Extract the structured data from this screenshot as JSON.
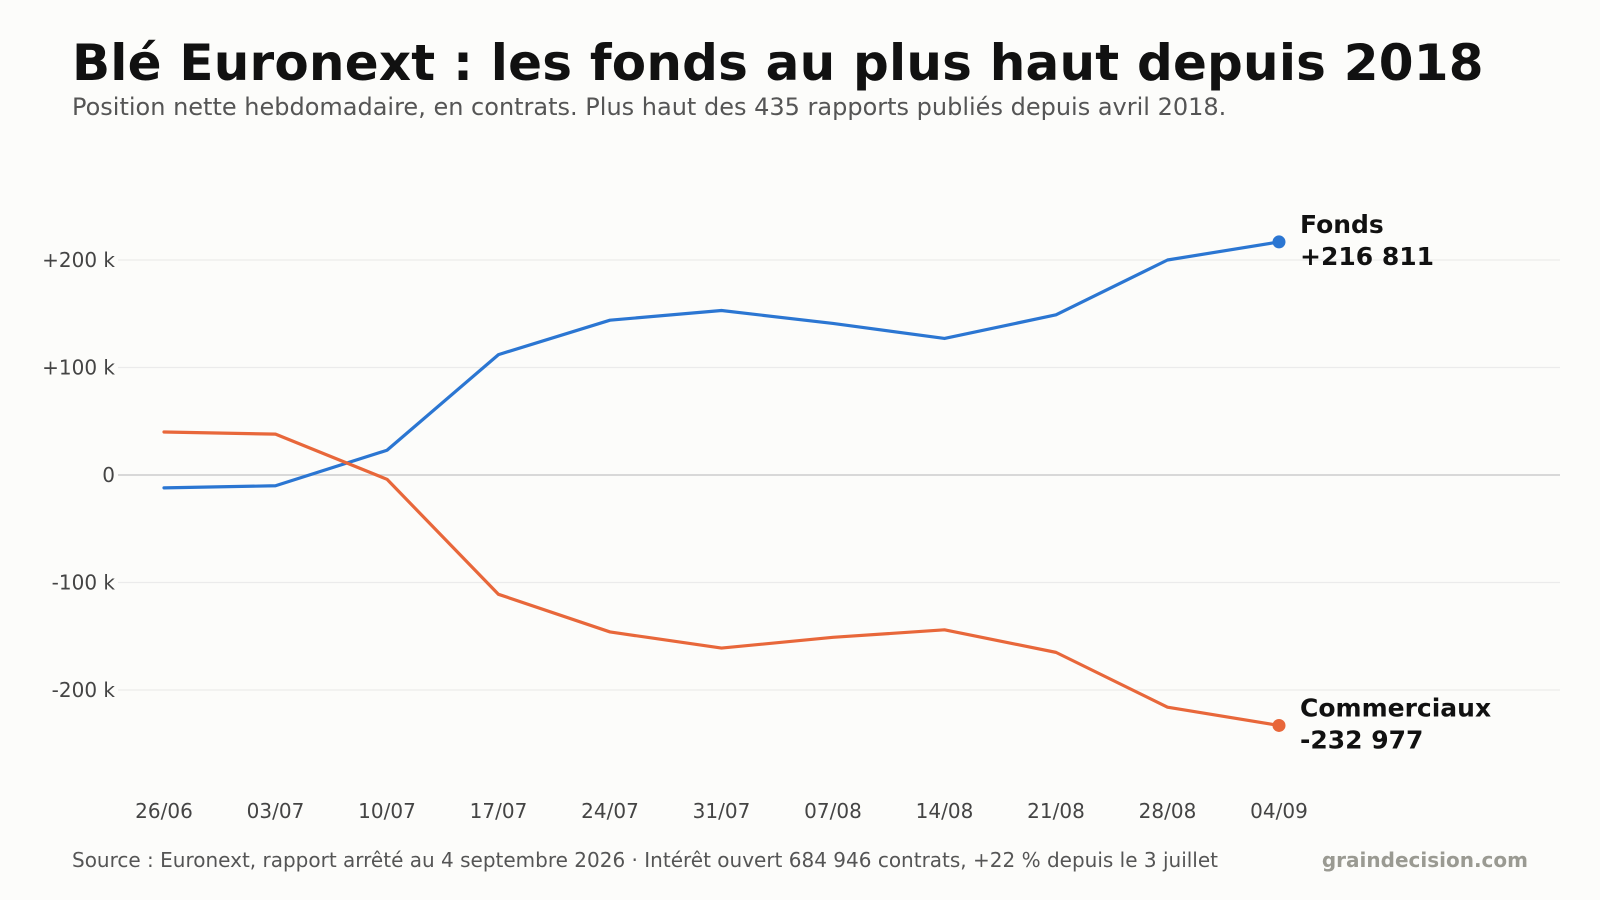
{
  "header": {
    "title": "Blé Euronext : les fonds au plus haut depuis 2018",
    "subtitle": "Position nette hebdomadaire, en contrats. Plus haut des 435 rapports publiés depuis avril 2018."
  },
  "footer": {
    "source": "Source : Euronext, rapport arrêté au 4 septembre 2026  ·  Intérêt ouvert 684 946 contrats, +22 % depuis le 3 juillet",
    "brand": "graindecision.com"
  },
  "colors": {
    "fonds": "#2b76d2",
    "commerciaux": "#e8673a",
    "zero_line": "#cccccc",
    "grid": "#ebebeb",
    "tick_text": "#444444",
    "label_text": "#111111"
  },
  "chart_data": {
    "type": "line",
    "title": "Blé Euronext : les fonds au plus haut depuis 2018",
    "subtitle": "Position nette hebdomadaire, en contrats. Plus haut des 435 rapports publiés depuis avril 2018.",
    "xlabel": "",
    "ylabel": "",
    "ylim": [
      -290000,
      290000
    ],
    "grid": true,
    "legend": "end-of-line labels",
    "x": [
      "26/06",
      "03/07",
      "10/07",
      "17/07",
      "24/07",
      "31/07",
      "07/08",
      "14/08",
      "21/08",
      "28/08",
      "04/09"
    ],
    "yticks": [
      {
        "value": 200000,
        "label": "+200 k"
      },
      {
        "value": 100000,
        "label": "+100 k"
      },
      {
        "value": 0,
        "label": "0"
      },
      {
        "value": -100000,
        "label": "-100 k"
      },
      {
        "value": -200000,
        "label": "-200 k"
      }
    ],
    "series": [
      {
        "name": "Fonds",
        "end_label": "+216 811",
        "values": [
          -12000,
          -10000,
          23000,
          112000,
          144000,
          153000,
          141000,
          127000,
          149000,
          200000,
          216811
        ]
      },
      {
        "name": "Commerciaux",
        "end_label": "-232 977",
        "values": [
          40000,
          38000,
          -4000,
          -111000,
          -146000,
          -161000,
          -151000,
          -144000,
          -165000,
          -216000,
          -232977
        ]
      }
    ]
  }
}
